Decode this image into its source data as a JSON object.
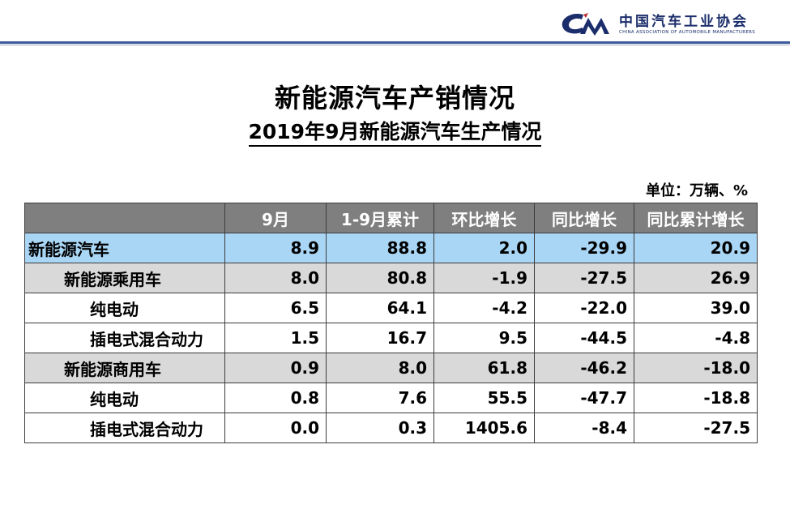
{
  "header": {
    "org_name_cn": "中国汽车工业协会",
    "org_name_en": "CHINA ASSOCIATION OF AUTOMOBILE MANUFACTURERS",
    "logo_icon": "caam-logo-icon",
    "brand_color": "#1b2d6b"
  },
  "title": "新能源汽车产销情况",
  "subtitle": "2019年9月新能源汽车生产情况",
  "unit": "单位：万辆、%",
  "table": {
    "columns": [
      "",
      "9月",
      "1-9月累计",
      "环比增长",
      "同比增长",
      "同比累计增长"
    ],
    "rows": [
      {
        "label": "新能源汽车",
        "values": [
          "8.9",
          "88.8",
          "2.0",
          "-29.9",
          "20.9"
        ]
      },
      {
        "label": "新能源乘用车",
        "values": [
          "8.0",
          "80.8",
          "-1.9",
          "-27.5",
          "26.9"
        ]
      },
      {
        "label": "纯电动",
        "values": [
          "6.5",
          "64.1",
          "-4.2",
          "-22.0",
          "39.0"
        ]
      },
      {
        "label": "插电式混合动力",
        "values": [
          "1.5",
          "16.7",
          "9.5",
          "-44.5",
          "-4.8"
        ]
      },
      {
        "label": "新能源商用车",
        "values": [
          "0.9",
          "8.0",
          "61.8",
          "-46.2",
          "-18.0"
        ]
      },
      {
        "label": "纯电动",
        "values": [
          "0.8",
          "7.6",
          "55.5",
          "-47.7",
          "-18.8"
        ]
      },
      {
        "label": "插电式混合动力",
        "values": [
          "0.0",
          "0.3",
          "1405.6",
          "-8.4",
          "-27.5"
        ]
      }
    ]
  },
  "colors": {
    "header_bg": "#7f7f7f",
    "total_row_bg": "#a9d6f5",
    "category_row_bg": "#d9d9d9"
  }
}
